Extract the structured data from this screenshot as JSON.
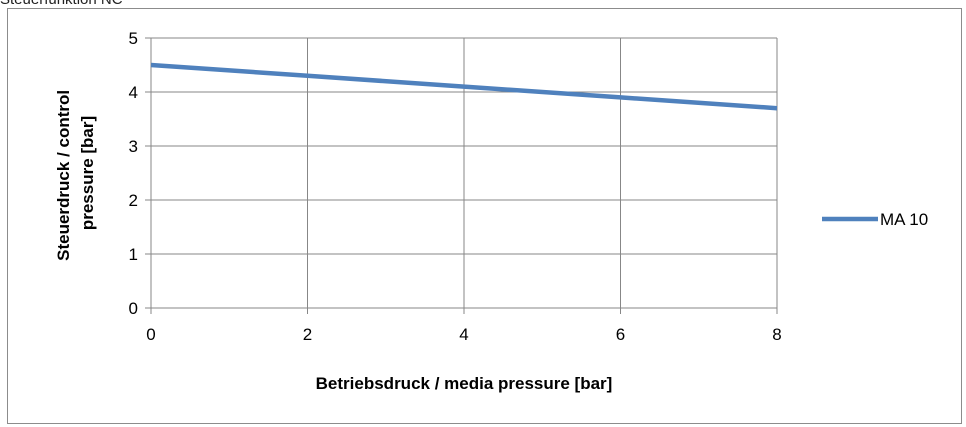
{
  "caption": "Steuerfunktion NC",
  "chart_data": {
    "type": "line",
    "x": [
      0,
      2,
      4,
      6,
      8
    ],
    "series": [
      {
        "name": "MA 10",
        "values": [
          4.5,
          4.3,
          4.1,
          3.9,
          3.7
        ]
      }
    ],
    "xlabel": "Betriebsdruck / media pressure [bar]",
    "ylabel_lines": [
      "Steuerdruck  / control",
      "pressure [bar]"
    ],
    "xlim": [
      0,
      8
    ],
    "ylim": [
      0,
      5
    ],
    "xticks": [
      0,
      2,
      4,
      6,
      8
    ],
    "yticks": [
      0,
      1,
      2,
      3,
      4,
      5
    ],
    "grid": true,
    "legend_position": "right",
    "colors": {
      "series": "#4f81bd",
      "grid": "#878787",
      "axis": "#878787"
    }
  }
}
